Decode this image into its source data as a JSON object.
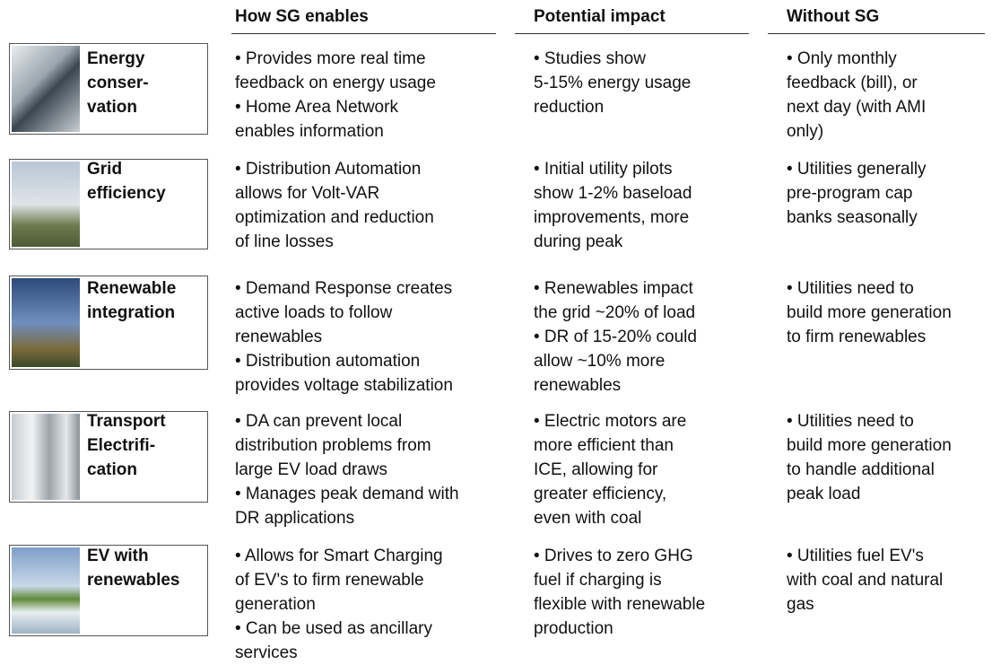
{
  "header": {
    "columns": [
      "How SG enables",
      "Potential impact",
      "Without SG"
    ]
  },
  "rows": [
    {
      "label": [
        "Energy",
        "conser-",
        "vation"
      ],
      "cells": [
        [
          "• Provides more real time",
          "feedback on energy usage",
          "• Home Area Network",
          "enables information"
        ],
        [
          "• Studies show",
          "5-15% energy usage",
          "reduction"
        ],
        [
          "• Only monthly",
          "feedback (bill), or",
          "next day (with AMI",
          "only)"
        ]
      ]
    },
    {
      "label": [
        "Grid",
        "efficiency"
      ],
      "cells": [
        [
          "• Distribution Automation",
          "allows for Volt-VAR",
          "optimization and reduction",
          "of line losses"
        ],
        [
          "• Initial utility pilots",
          "show 1-2% baseload",
          "improvements, more",
          "during peak"
        ],
        [
          "• Utilities generally",
          "pre-program cap",
          "banks seasonally"
        ]
      ]
    },
    {
      "label": [
        "Renewable",
        "integration"
      ],
      "cells": [
        [
          "• Demand Response creates",
          "active loads to follow",
          "renewables",
          "• Distribution automation",
          "provides voltage stabilization"
        ],
        [
          "• Renewables impact",
          "the grid ~20% of load",
          "• DR of 15-20% could",
          "allow ~10% more",
          "renewables"
        ],
        [
          "• Utilities need to",
          "build more generation",
          "to firm renewables"
        ]
      ]
    },
    {
      "label": [
        "Transport",
        "Electrifi-",
        "cation"
      ],
      "cells": [
        [
          "• DA can prevent local",
          "distribution problems from",
          "large EV load draws",
          "• Manages peak demand with",
          "DR applications"
        ],
        [
          "• Electric motors are",
          "more efficient than",
          "ICE, allowing for",
          "greater efficiency,",
          "even with coal"
        ],
        [
          "• Utilities need to",
          "build more generation",
          "to handle additional",
          "peak load"
        ]
      ]
    },
    {
      "label": [
        "EV with",
        "renewables"
      ],
      "cells": [
        [
          "• Allows for Smart Charging",
          "of EV's to firm renewable",
          "generation",
          "• Can be used as ancillary",
          "services"
        ],
        [
          "• Drives to zero GHG",
          "fuel if charging is",
          "flexible with renewable",
          "production"
        ],
        [
          "• Utilities fuel EV's",
          "with coal and natural",
          "gas"
        ]
      ]
    }
  ]
}
